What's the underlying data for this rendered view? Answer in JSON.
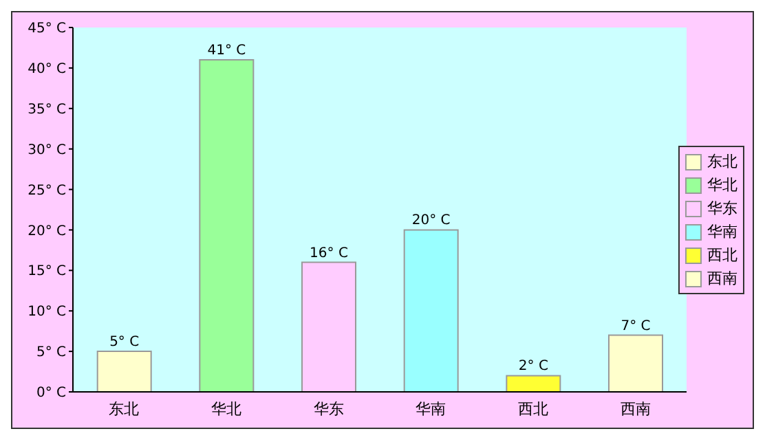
{
  "chart_data": {
    "type": "bar",
    "categories": [
      "东北",
      "华北",
      "华东",
      "华南",
      "西北",
      "西南"
    ],
    "stacked": true,
    "series": [
      {
        "name": "东北",
        "color": "#ffffcc",
        "values": [
          5,
          null,
          null,
          null,
          null,
          null
        ],
        "value_labels": [
          "5° C",
          null,
          null,
          null,
          null,
          null
        ]
      },
      {
        "name": "华北",
        "color": "#99ff99",
        "values": [
          null,
          41,
          null,
          null,
          null,
          null
        ],
        "value_labels": [
          null,
          "41° C",
          null,
          null,
          null,
          null
        ]
      },
      {
        "name": "华东",
        "color": "#ffccff",
        "values": [
          null,
          null,
          16,
          null,
          null,
          null
        ],
        "value_labels": [
          null,
          null,
          "16° C",
          null,
          null,
          null
        ]
      },
      {
        "name": "华南",
        "color": "#99ffff",
        "values": [
          null,
          null,
          null,
          20,
          null,
          null
        ],
        "value_labels": [
          null,
          null,
          null,
          "20° C",
          null,
          null
        ]
      },
      {
        "name": "西北",
        "color": "#ffff33",
        "values": [
          null,
          null,
          null,
          null,
          2,
          null
        ],
        "value_labels": [
          null,
          null,
          null,
          null,
          "2° C",
          null
        ]
      },
      {
        "name": "西南",
        "color": "#ffffcc",
        "values": [
          null,
          null,
          null,
          null,
          null,
          7
        ],
        "value_labels": [
          null,
          null,
          null,
          null,
          null,
          "7° C"
        ]
      }
    ],
    "ylim": [
      0,
      45
    ],
    "yticks": [
      {
        "value": 0,
        "label": "0° C"
      },
      {
        "value": 5,
        "label": "5° C"
      },
      {
        "value": 10,
        "label": "10° C"
      },
      {
        "value": 15,
        "label": "15° C"
      },
      {
        "value": 20,
        "label": "20° C"
      },
      {
        "value": 25,
        "label": "25° C"
      },
      {
        "value": 30,
        "label": "30° C"
      },
      {
        "value": 35,
        "label": "35° C"
      },
      {
        "value": 40,
        "label": "40° C"
      },
      {
        "value": 45,
        "label": "45° C"
      }
    ],
    "grid": false,
    "legend": "right"
  }
}
